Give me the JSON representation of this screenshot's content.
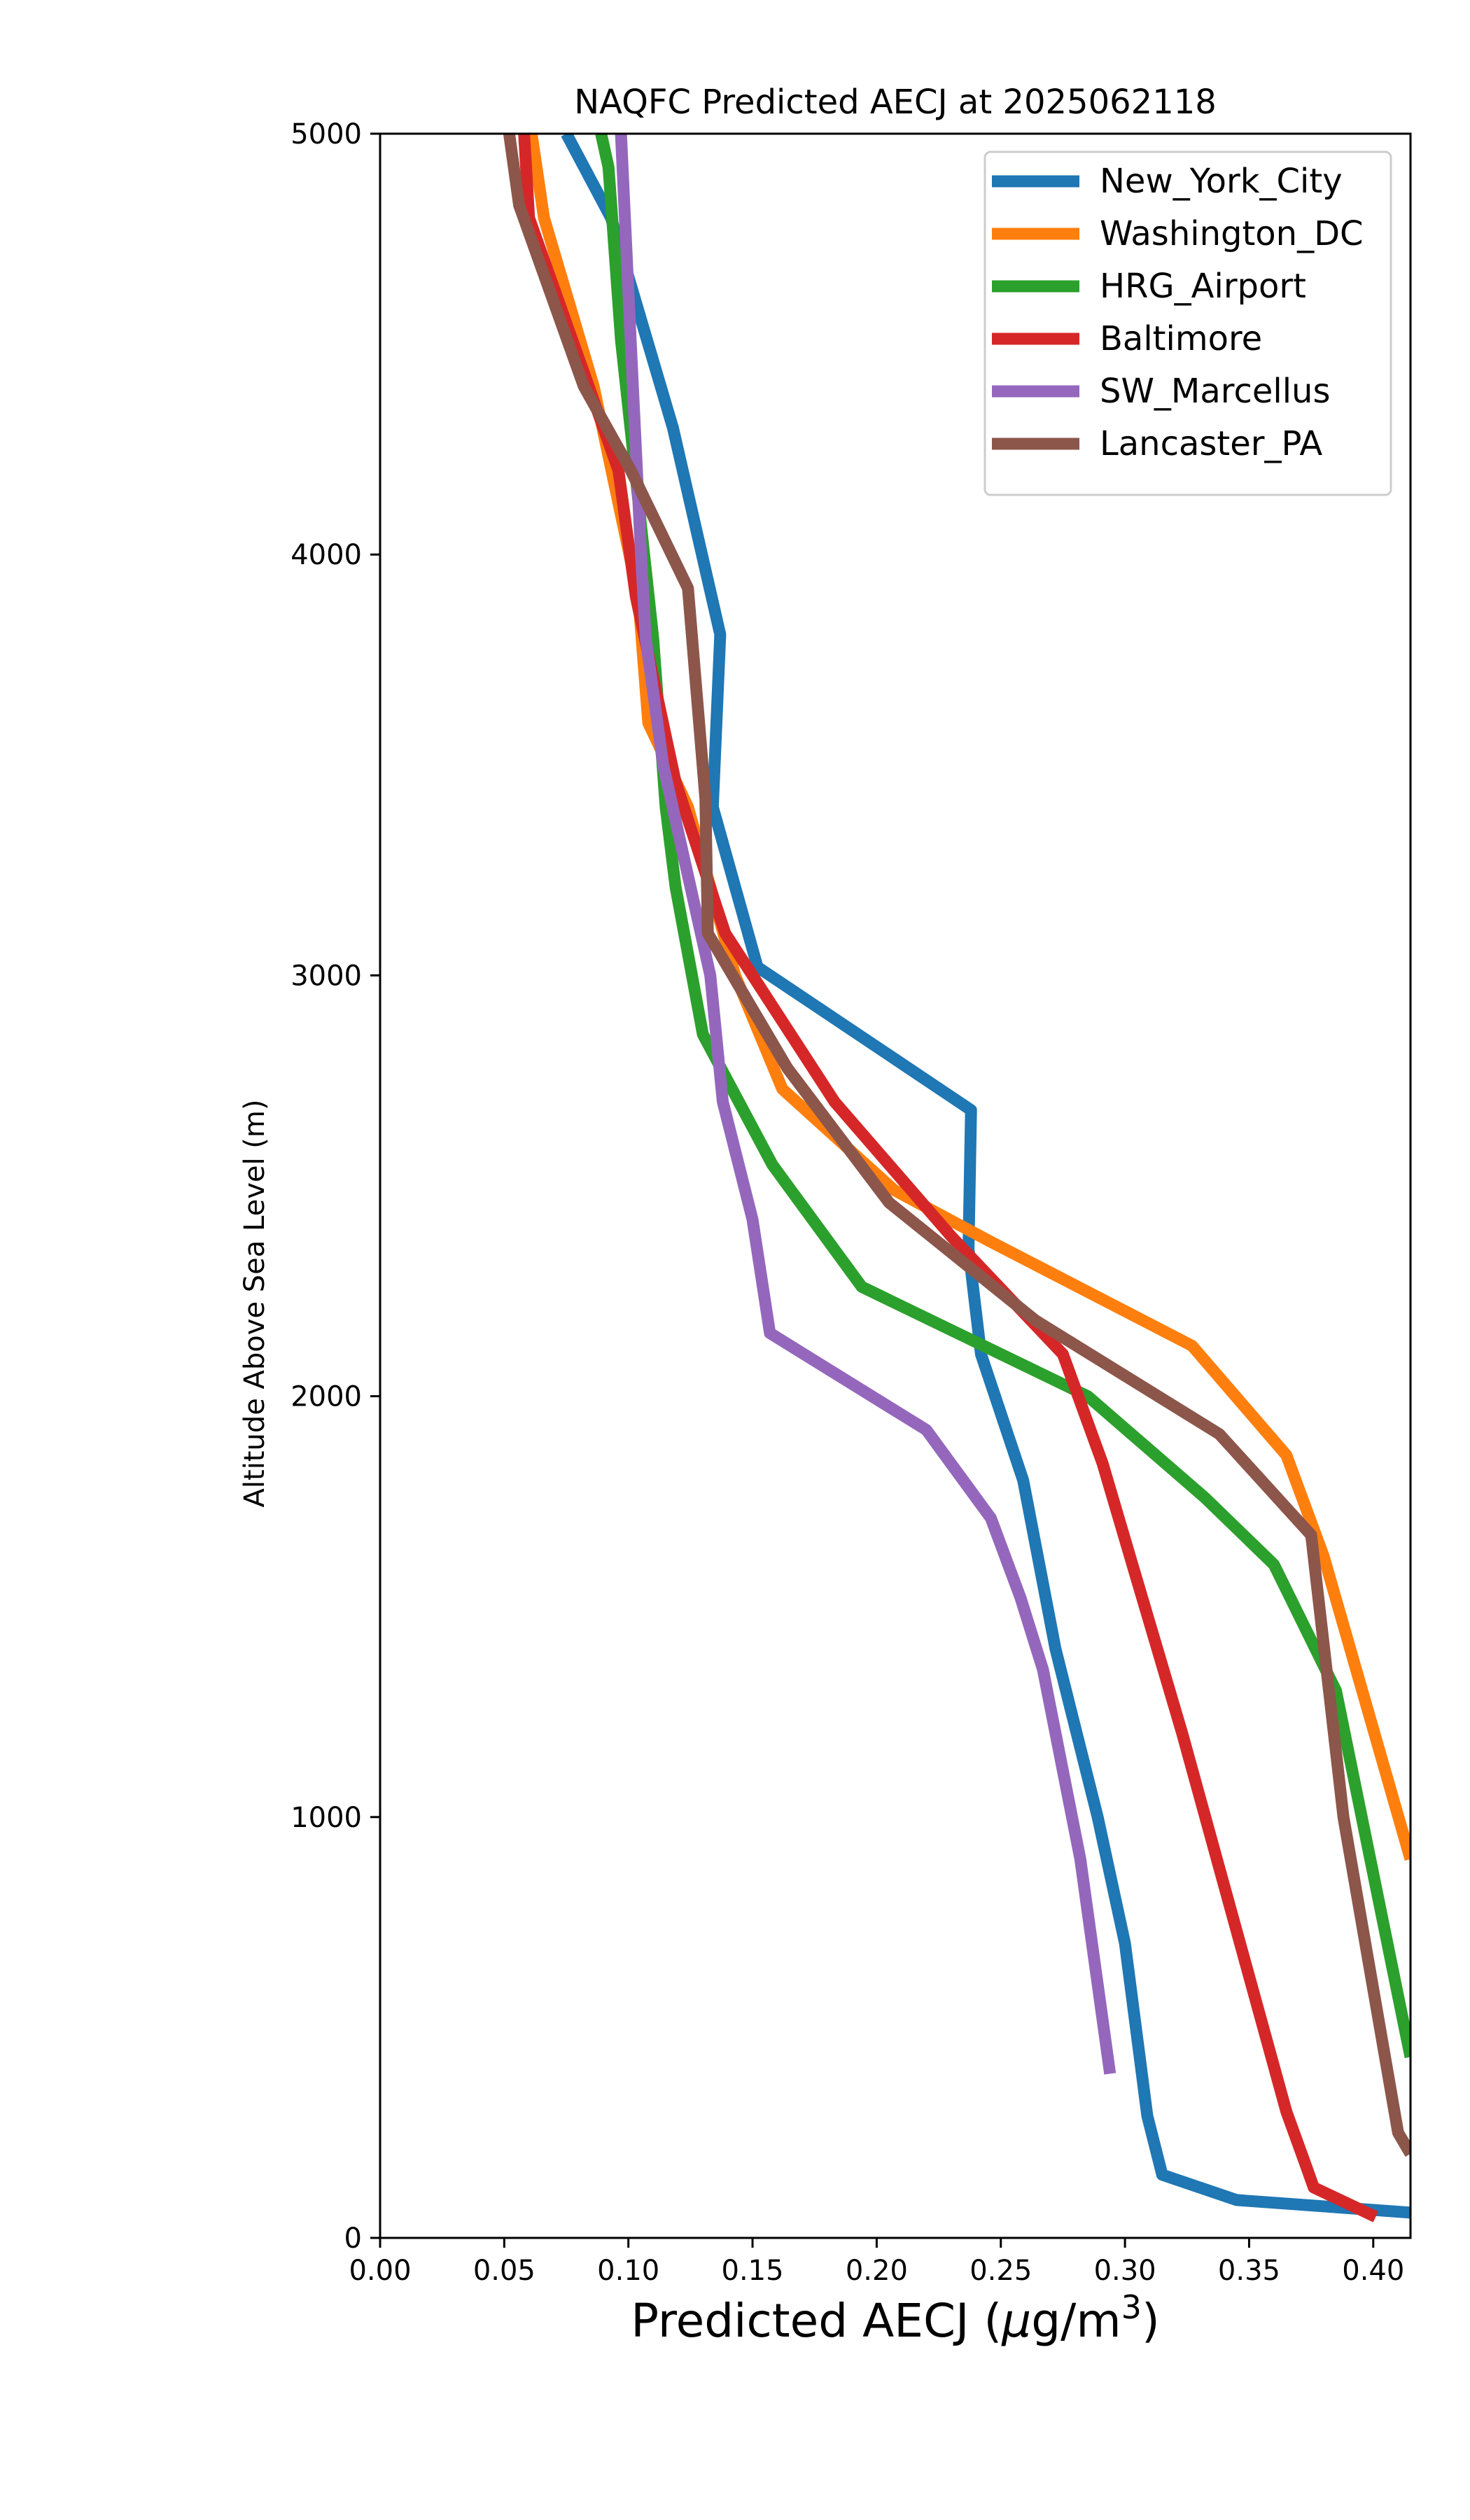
{
  "chart_data": {
    "type": "line",
    "title": "NAQFC Predicted AECJ at 2025062118",
    "xlabel": "Predicted AECJ (μg/m³)",
    "xlabel_parts": {
      "prefix": "Predicted AECJ (",
      "mu": "μ",
      "unit": "g/m",
      "sup": "3",
      "suffix": ")"
    },
    "ylabel": "Altitude Above Sea Level (m)",
    "xlim": [
      0,
      0.415
    ],
    "ylim": [
      0,
      5000
    ],
    "x_ticks": [
      "0.00",
      "0.05",
      "0.10",
      "0.15",
      "0.20",
      "0.25",
      "0.30",
      "0.35",
      "0.40"
    ],
    "y_ticks": [
      "0",
      "1000",
      "2000",
      "3000",
      "4000",
      "5000"
    ],
    "grid": false,
    "legend_position": "top-right",
    "series": [
      {
        "name": "New_York_City",
        "color": "#1f77b4",
        "points": [
          [
            0.415,
            60
          ],
          [
            0.345,
            90
          ],
          [
            0.315,
            150
          ],
          [
            0.309,
            290
          ],
          [
            0.3,
            700
          ],
          [
            0.289,
            1000
          ],
          [
            0.272,
            1400
          ],
          [
            0.259,
            1800
          ],
          [
            0.242,
            2100
          ],
          [
            0.237,
            2350
          ],
          [
            0.238,
            2680
          ],
          [
            0.152,
            3020
          ],
          [
            0.134,
            3400
          ],
          [
            0.137,
            3810
          ],
          [
            0.118,
            4300
          ],
          [
            0.093,
            4800
          ],
          [
            0.075,
            5000
          ]
        ]
      },
      {
        "name": "Washington_DC",
        "color": "#ff7f0e",
        "points": [
          [
            0.415,
            900
          ],
          [
            0.38,
            1620
          ],
          [
            0.365,
            1860
          ],
          [
            0.327,
            2120
          ],
          [
            0.245,
            2370
          ],
          [
            0.207,
            2490
          ],
          [
            0.162,
            2730
          ],
          [
            0.143,
            3000
          ],
          [
            0.124,
            3400
          ],
          [
            0.108,
            3600
          ],
          [
            0.104,
            3900
          ],
          [
            0.086,
            4400
          ],
          [
            0.066,
            4800
          ],
          [
            0.061,
            5000
          ]
        ]
      },
      {
        "name": "HRG_Airport",
        "color": "#2ca02c",
        "points": [
          [
            0.415,
            430
          ],
          [
            0.385,
            1300
          ],
          [
            0.36,
            1600
          ],
          [
            0.332,
            1760
          ],
          [
            0.285,
            2000
          ],
          [
            0.194,
            2260
          ],
          [
            0.158,
            2550
          ],
          [
            0.13,
            2860
          ],
          [
            0.119,
            3210
          ],
          [
            0.115,
            3400
          ],
          [
            0.11,
            3800
          ],
          [
            0.097,
            4510
          ],
          [
            0.092,
            4920
          ],
          [
            0.089,
            5000
          ]
        ]
      },
      {
        "name": "Baltimore",
        "color": "#d62728",
        "points": [
          [
            0.401,
            50
          ],
          [
            0.376,
            120
          ],
          [
            0.373,
            170
          ],
          [
            0.365,
            300
          ],
          [
            0.323,
            1200
          ],
          [
            0.303,
            1600
          ],
          [
            0.291,
            1840
          ],
          [
            0.275,
            2100
          ],
          [
            0.23,
            2380
          ],
          [
            0.183,
            2700
          ],
          [
            0.139,
            3100
          ],
          [
            0.119,
            3460
          ],
          [
            0.103,
            3900
          ],
          [
            0.096,
            4200
          ],
          [
            0.06,
            4800
          ],
          [
            0.058,
            5000
          ]
        ]
      },
      {
        "name": "SW_Marcellus",
        "color": "#9467bd",
        "points": [
          [
            0.294,
            390
          ],
          [
            0.282,
            900
          ],
          [
            0.267,
            1350
          ],
          [
            0.258,
            1520
          ],
          [
            0.246,
            1710
          ],
          [
            0.22,
            1920
          ],
          [
            0.157,
            2150
          ],
          [
            0.15,
            2420
          ],
          [
            0.138,
            2700
          ],
          [
            0.133,
            3000
          ],
          [
            0.114,
            3500
          ],
          [
            0.107,
            3800
          ],
          [
            0.105,
            4010
          ],
          [
            0.101,
            4500
          ],
          [
            0.097,
            5000
          ]
        ]
      },
      {
        "name": "Lancaster_PA",
        "color": "#8c564b",
        "points": [
          [
            0.415,
            200
          ],
          [
            0.41,
            250
          ],
          [
            0.388,
            1000
          ],
          [
            0.375,
            1670
          ],
          [
            0.338,
            1910
          ],
          [
            0.264,
            2180
          ],
          [
            0.205,
            2460
          ],
          [
            0.164,
            2780
          ],
          [
            0.132,
            3100
          ],
          [
            0.131,
            3420
          ],
          [
            0.124,
            3920
          ],
          [
            0.101,
            4200
          ],
          [
            0.082,
            4400
          ],
          [
            0.056,
            4830
          ],
          [
            0.052,
            5000
          ]
        ]
      }
    ]
  }
}
